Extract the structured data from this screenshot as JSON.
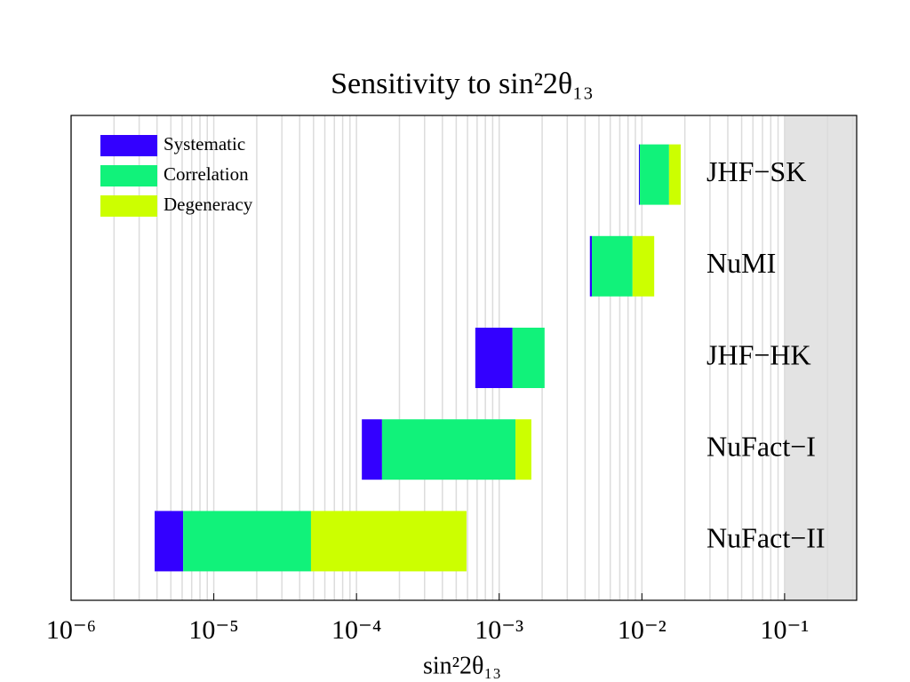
{
  "chart_data": {
    "type": "floating_bar",
    "title": "Sensitivity to sin²2θ₁₃",
    "x_label": "sin²2θ₁₃",
    "xscale": "log",
    "xlim": [
      1e-06,
      0.32
    ],
    "xticks": [
      {
        "value": 1e-06,
        "label": "10⁻⁶"
      },
      {
        "value": 1e-05,
        "label": "10⁻⁵"
      },
      {
        "value": 0.0001,
        "label": "10⁻⁴"
      },
      {
        "value": 0.001,
        "label": "10⁻³"
      },
      {
        "value": 0.01,
        "label": "10⁻²"
      },
      {
        "value": 0.1,
        "label": "10⁻¹"
      }
    ],
    "minor_xticks": [
      2e-06,
      3e-06,
      4e-06,
      5e-06,
      6e-06,
      7e-06,
      8e-06,
      9e-06,
      2e-05,
      3e-05,
      4e-05,
      5e-05,
      6e-05,
      7e-05,
      8e-05,
      9e-05,
      0.0002,
      0.0003,
      0.0004,
      0.0005,
      0.0006,
      0.0007,
      0.0008,
      0.0009,
      0.002,
      0.003,
      0.004,
      0.005,
      0.006,
      0.007,
      0.008,
      0.009,
      0.02,
      0.03,
      0.04,
      0.05,
      0.06,
      0.07,
      0.08,
      0.09,
      0.2,
      0.3
    ],
    "grid": true,
    "shaded_region": [
      0.1,
      0.32
    ],
    "legend": "upper left",
    "categories": [
      "JHF−SK",
      "NuMI",
      "JHF−HK",
      "NuFact−I",
      "NuFact−II"
    ],
    "series": [
      {
        "name": "Systematic",
        "color": "#3300ff",
        "values": [
          [
            0.00953,
            0.00968
          ],
          [
            0.00432,
            0.00446
          ],
          [
            0.00068,
            0.00124
          ],
          [
            0.000109,
            0.000151
          ],
          [
            3.85e-06,
            6.1e-06
          ]
        ]
      },
      {
        "name": "Correlation",
        "color": "#11f27a",
        "values": [
          [
            0.00968,
            0.0155
          ],
          [
            0.00446,
            0.0086
          ],
          [
            0.00124,
            0.00208
          ],
          [
            0.000151,
            0.0013
          ],
          [
            6.1e-06,
            4.8e-05
          ]
        ]
      },
      {
        "name": "Degeneracy",
        "color": "#ccff00",
        "values": [
          [
            0.0155,
            0.0187
          ],
          [
            0.0086,
            0.0122
          ],
          null,
          [
            0.0013,
            0.00168
          ],
          [
            4.8e-05,
            0.00059
          ]
        ]
      }
    ]
  }
}
